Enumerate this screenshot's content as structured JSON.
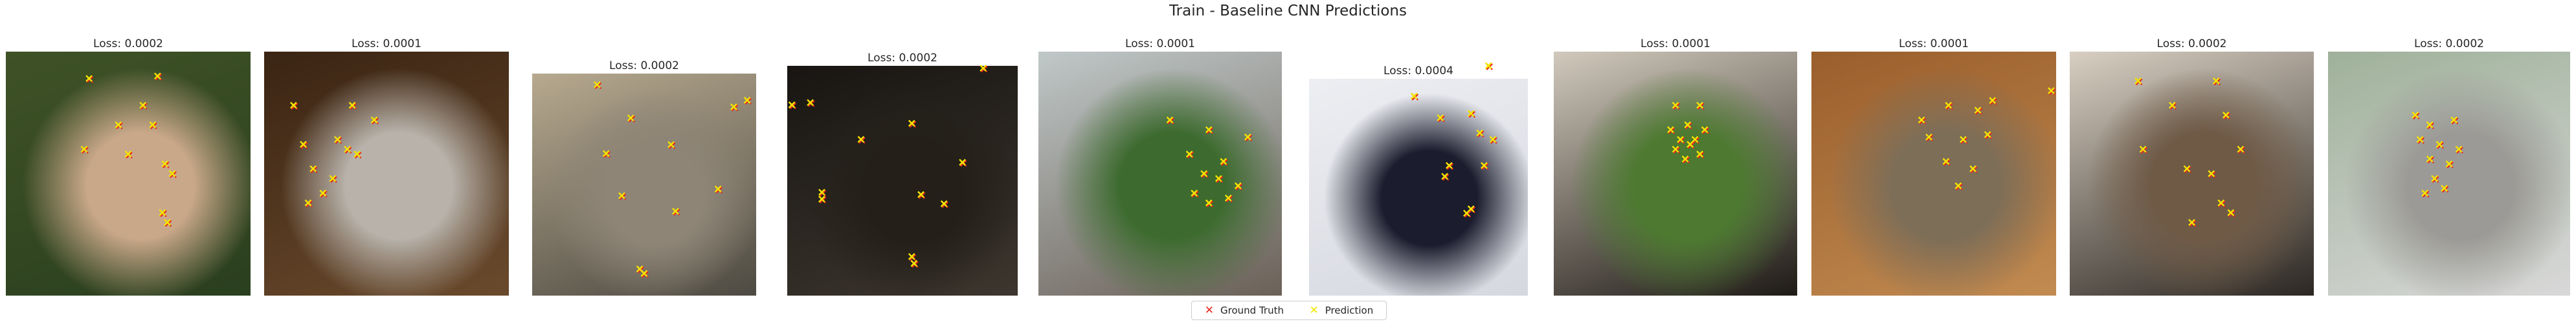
{
  "chart_data": {
    "type": "scatter",
    "title": "Train - Baseline CNN Predictions",
    "legend": {
      "placement": "bottom-center",
      "entries": [
        {
          "label": "Ground Truth",
          "marker": "x",
          "color": "#e8281e"
        },
        {
          "label": "Prediction",
          "marker": "x",
          "color": "#f2e600"
        }
      ]
    },
    "series_colors": {
      "ground_truth": "#e8281e",
      "prediction": "#f2e600"
    },
    "panels": [
      {
        "title": "Loss: 0.0002",
        "photo_colors": [
          "#3f5226",
          "#c9a889",
          "#2a3f1f"
        ],
        "points": [
          [
            0.34,
            0.11
          ],
          [
            0.62,
            0.1
          ],
          [
            0.56,
            0.22
          ],
          [
            0.46,
            0.3
          ],
          [
            0.6,
            0.3
          ],
          [
            0.32,
            0.4
          ],
          [
            0.5,
            0.42
          ],
          [
            0.65,
            0.46
          ],
          [
            0.68,
            0.5
          ],
          [
            0.64,
            0.66
          ],
          [
            0.66,
            0.7
          ]
        ]
      },
      {
        "title": "Loss: 0.0001",
        "photo_colors": [
          "#3a2413",
          "#b8b2aa",
          "#6a4a2c"
        ],
        "points": [
          [
            0.12,
            0.22
          ],
          [
            0.36,
            0.22
          ],
          [
            0.45,
            0.28
          ],
          [
            0.3,
            0.36
          ],
          [
            0.16,
            0.38
          ],
          [
            0.34,
            0.4
          ],
          [
            0.2,
            0.48
          ],
          [
            0.28,
            0.52
          ],
          [
            0.38,
            0.42
          ],
          [
            0.24,
            0.58
          ],
          [
            0.18,
            0.62
          ]
        ]
      },
      {
        "title": "Loss: 0.0002",
        "photo_colors": [
          "#b7a98f",
          "#8e8577",
          "#4d4a42"
        ],
        "points": [
          [
            0.29,
            0.05
          ],
          [
            0.96,
            0.12
          ],
          [
            0.9,
            0.15
          ],
          [
            0.44,
            0.2
          ],
          [
            0.62,
            0.32
          ],
          [
            0.33,
            0.36
          ],
          [
            0.83,
            0.52
          ],
          [
            0.4,
            0.55
          ],
          [
            0.64,
            0.62
          ],
          [
            0.48,
            0.88
          ],
          [
            0.5,
            0.9
          ]
        ]
      },
      {
        "title": "Loss: 0.0002",
        "photo_colors": [
          "#181512",
          "#242019",
          "#3c362e"
        ],
        "points": [
          [
            0.02,
            0.17
          ],
          [
            0.1,
            0.16
          ],
          [
            0.85,
            0.01
          ],
          [
            0.54,
            0.25
          ],
          [
            0.32,
            0.32
          ],
          [
            0.76,
            0.42
          ],
          [
            0.15,
            0.55
          ],
          [
            0.15,
            0.58
          ],
          [
            0.58,
            0.56
          ],
          [
            0.68,
            0.6
          ],
          [
            0.54,
            0.83
          ],
          [
            0.55,
            0.86
          ]
        ]
      },
      {
        "title": "Loss: 0.0001",
        "photo_colors": [
          "#c0c8c8",
          "#3d6b2f",
          "#6b6158"
        ],
        "points": [
          [
            0.54,
            0.28
          ],
          [
            0.7,
            0.32
          ],
          [
            0.86,
            0.35
          ],
          [
            0.62,
            0.42
          ],
          [
            0.76,
            0.45
          ],
          [
            0.68,
            0.5
          ],
          [
            0.82,
            0.55
          ],
          [
            0.64,
            0.58
          ],
          [
            0.74,
            0.52
          ],
          [
            0.7,
            0.62
          ],
          [
            0.78,
            0.6
          ]
        ]
      },
      {
        "title": "Loss: 0.0004",
        "photo_colors": [
          "#eceef2",
          "#1b1d2e",
          "#d6d8e0"
        ],
        "points": [
          [
            0.82,
            -0.06
          ],
          [
            0.48,
            0.08
          ],
          [
            0.6,
            0.18
          ],
          [
            0.74,
            0.16
          ],
          [
            0.78,
            0.25
          ],
          [
            0.84,
            0.28
          ],
          [
            0.64,
            0.4
          ],
          [
            0.8,
            0.4
          ],
          [
            0.62,
            0.45
          ],
          [
            0.74,
            0.6
          ],
          [
            0.72,
            0.62
          ]
        ]
      },
      {
        "title": "Loss: 0.0001",
        "photo_colors": [
          "#d1c9bc",
          "#4d7a30",
          "#1e1a15"
        ],
        "points": [
          [
            0.5,
            0.22
          ],
          [
            0.6,
            0.22
          ],
          [
            0.55,
            0.3
          ],
          [
            0.48,
            0.32
          ],
          [
            0.62,
            0.32
          ],
          [
            0.52,
            0.36
          ],
          [
            0.58,
            0.36
          ],
          [
            0.5,
            0.4
          ],
          [
            0.56,
            0.38
          ],
          [
            0.6,
            0.42
          ],
          [
            0.54,
            0.44
          ]
        ]
      },
      {
        "title": "Loss: 0.0001",
        "photo_colors": [
          "#9a5e2c",
          "#7d6e58",
          "#c28b51"
        ],
        "points": [
          [
            0.45,
            0.28
          ],
          [
            0.56,
            0.22
          ],
          [
            0.68,
            0.24
          ],
          [
            0.74,
            0.2
          ],
          [
            0.48,
            0.35
          ],
          [
            0.62,
            0.36
          ],
          [
            0.72,
            0.34
          ],
          [
            0.55,
            0.45
          ],
          [
            0.66,
            0.48
          ],
          [
            0.6,
            0.55
          ],
          [
            0.98,
            0.16
          ]
        ]
      },
      {
        "title": "Loss: 0.0002",
        "photo_colors": [
          "#d8cfc2",
          "#6f5a46",
          "#2c2722"
        ],
        "points": [
          [
            0.28,
            0.12
          ],
          [
            0.6,
            0.12
          ],
          [
            0.42,
            0.22
          ],
          [
            0.64,
            0.26
          ],
          [
            0.3,
            0.4
          ],
          [
            0.7,
            0.4
          ],
          [
            0.48,
            0.48
          ],
          [
            0.58,
            0.5
          ],
          [
            0.62,
            0.62
          ],
          [
            0.66,
            0.66
          ],
          [
            0.5,
            0.7
          ]
        ]
      },
      {
        "title": "Loss: 0.0002",
        "photo_colors": [
          "#9fb19a",
          "#9c9a96",
          "#d8d8d8"
        ],
        "points": [
          [
            0.36,
            0.26
          ],
          [
            0.42,
            0.3
          ],
          [
            0.52,
            0.28
          ],
          [
            0.38,
            0.36
          ],
          [
            0.46,
            0.38
          ],
          [
            0.54,
            0.4
          ],
          [
            0.42,
            0.44
          ],
          [
            0.5,
            0.46
          ],
          [
            0.44,
            0.52
          ],
          [
            0.4,
            0.58
          ],
          [
            0.48,
            0.56
          ]
        ]
      }
    ]
  }
}
